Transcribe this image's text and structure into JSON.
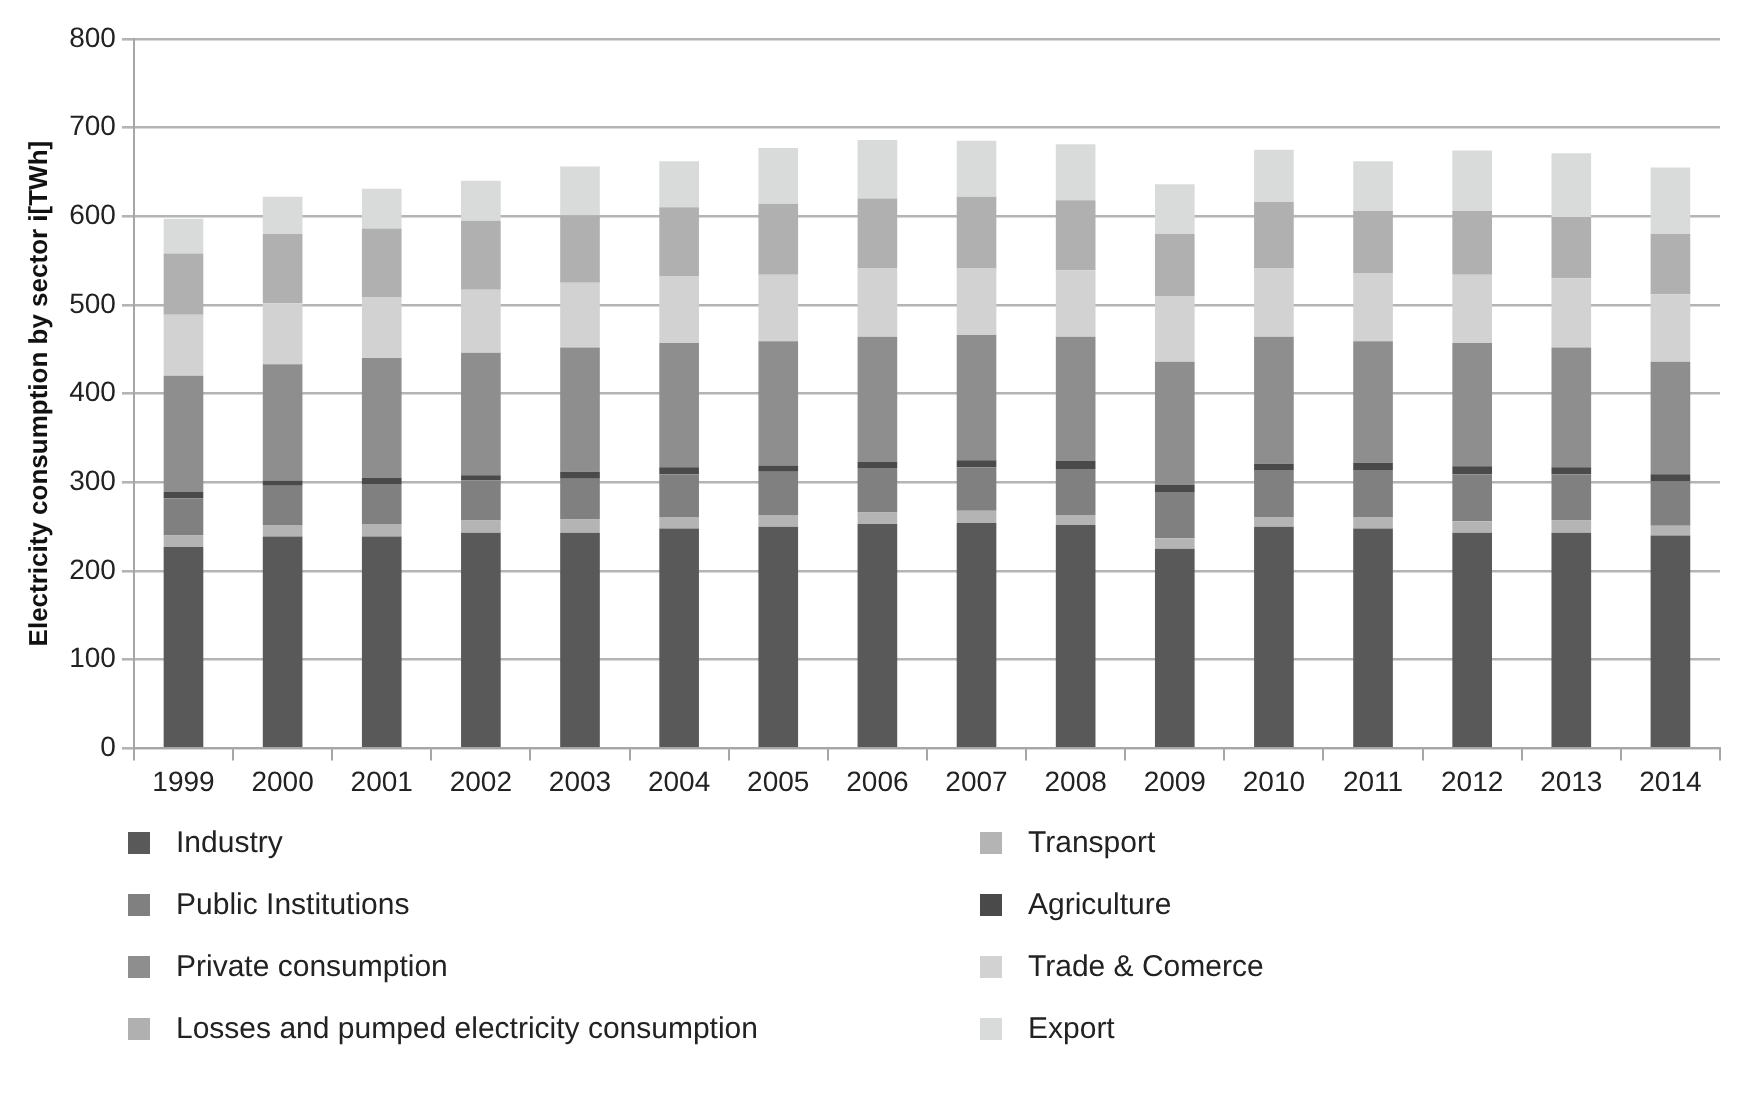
{
  "chart_data": {
    "type": "bar",
    "ylabel": "Electricity consumption by sector i[TWh]",
    "categories": [
      "1999",
      "2000",
      "2001",
      "2002",
      "2003",
      "2004",
      "2005",
      "2006",
      "2007",
      "2008",
      "2009",
      "2010",
      "2011",
      "2012",
      "2013",
      "2014"
    ],
    "stacked": true,
    "ylim": [
      0,
      800
    ],
    "yticks": [
      0,
      100,
      200,
      300,
      400,
      500,
      600,
      700,
      800
    ],
    "grid": "y",
    "legend": "bottom",
    "series": [
      {
        "name": "Industry",
        "color": "#595959",
        "values": [
          227,
          239,
          239,
          243,
          243,
          248,
          250,
          253,
          254,
          252,
          225,
          250,
          248,
          243,
          243,
          240
        ]
      },
      {
        "name": "Transport",
        "color": "#b4b4b4",
        "values": [
          13,
          13,
          14,
          14,
          15,
          13,
          13,
          13,
          14,
          11,
          12,
          11,
          13,
          13,
          14,
          11
        ]
      },
      {
        "name": "Public Institutions",
        "color": "#808080",
        "values": [
          42,
          44,
          45,
          45,
          46,
          48,
          49,
          50,
          49,
          52,
          52,
          53,
          53,
          53,
          52,
          50
        ]
      },
      {
        "name": "Agriculture",
        "color": "#4a4a4a",
        "values": [
          7,
          6,
          7,
          6,
          8,
          8,
          7,
          7,
          8,
          9,
          8,
          7,
          8,
          9,
          8,
          8
        ]
      },
      {
        "name": "Private consumption",
        "color": "#8e8e8e",
        "values": [
          131,
          131,
          135,
          138,
          140,
          140,
          140,
          141,
          141,
          140,
          139,
          143,
          137,
          139,
          135,
          127
        ]
      },
      {
        "name": "Trade & Comerce",
        "color": "#d2d2d2",
        "values": [
          69,
          69,
          69,
          71,
          73,
          75,
          75,
          77,
          75,
          75,
          74,
          77,
          77,
          77,
          78,
          76
        ]
      },
      {
        "name": "Losses and pumped electricity consumption",
        "color": "#b0b0b0",
        "values": [
          69,
          78,
          77,
          78,
          76,
          78,
          80,
          79,
          81,
          79,
          70,
          75,
          70,
          72,
          69,
          68
        ]
      },
      {
        "name": "Export",
        "color": "#d9dbda",
        "values": [
          39,
          42,
          45,
          45,
          55,
          52,
          63,
          66,
          63,
          63,
          56,
          59,
          56,
          68,
          72,
          75
        ]
      }
    ]
  }
}
